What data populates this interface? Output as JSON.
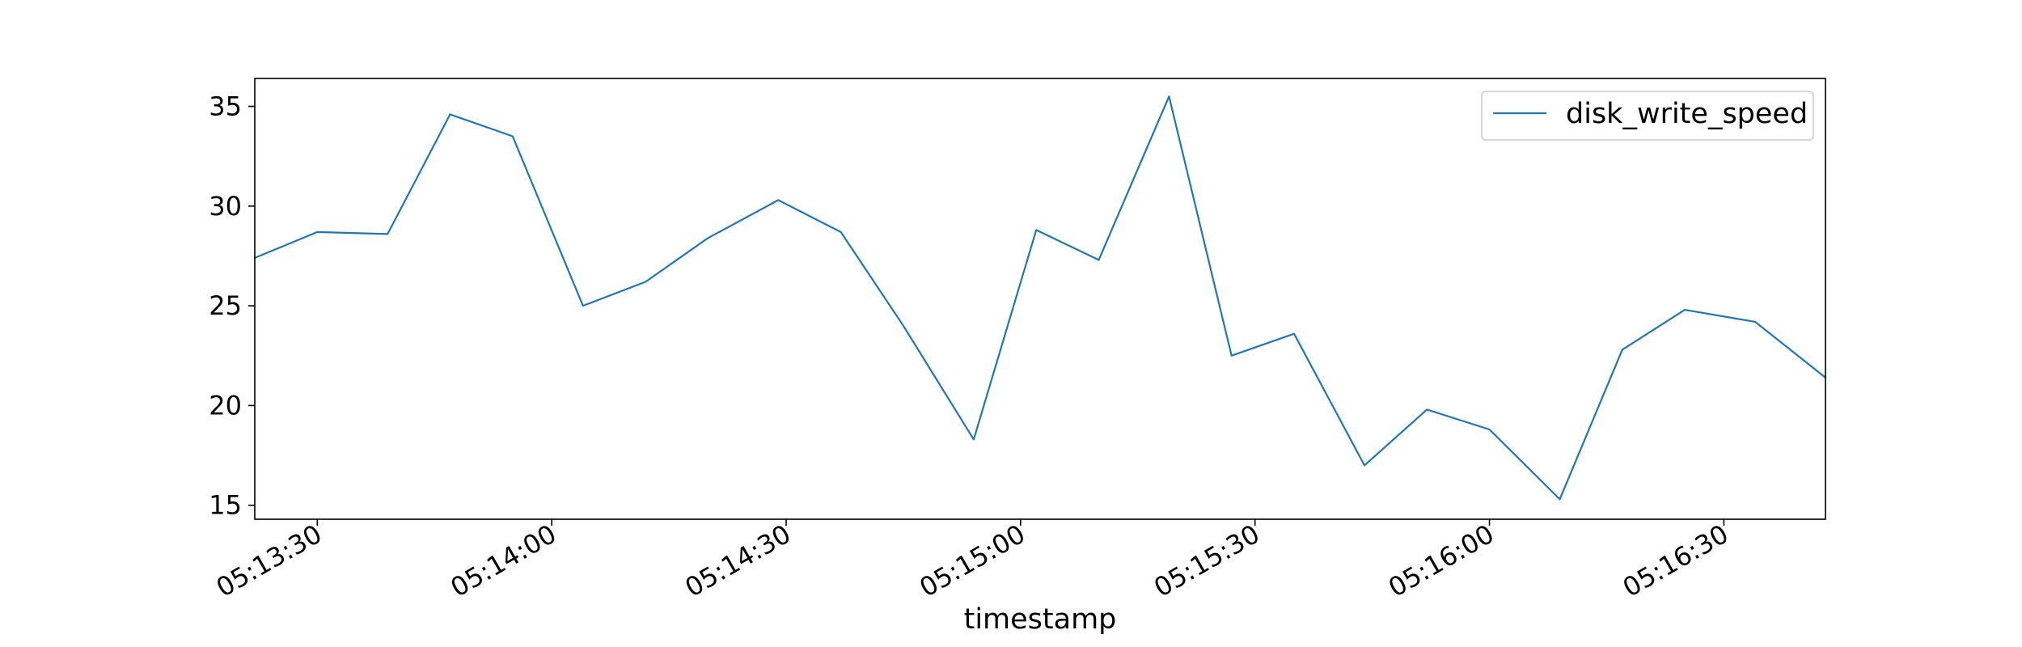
{
  "chart_data": {
    "type": "line",
    "title": "",
    "xlabel": "timestamp",
    "ylabel": "",
    "xlim": [
      "05:13:22",
      "05:16:43"
    ],
    "ylim": [
      14.3,
      36.4
    ],
    "x_ticks": [
      "05:13:30",
      "05:14:00",
      "05:14:30",
      "05:15:00",
      "05:15:30",
      "05:16:00",
      "05:16:30"
    ],
    "y_ticks": [
      15,
      20,
      25,
      30,
      35
    ],
    "x": [
      "05:13:22",
      "05:13:30",
      "05:13:39",
      "05:13:47",
      "05:13:55",
      "05:14:04",
      "05:14:12",
      "05:14:20",
      "05:14:29",
      "05:14:37",
      "05:14:45",
      "05:14:54",
      "05:15:02",
      "05:15:10",
      "05:15:19",
      "05:15:27",
      "05:15:35",
      "05:15:44",
      "05:15:52",
      "05:16:00",
      "05:16:09",
      "05:16:17",
      "05:16:25",
      "05:16:34",
      "05:16:43"
    ],
    "series": [
      {
        "name": "disk_write_speed",
        "color": "#1f77b4",
        "values": [
          27.4,
          28.7,
          28.6,
          34.6,
          33.5,
          25.0,
          26.2,
          28.4,
          30.3,
          28.7,
          24.0,
          18.3,
          28.8,
          27.3,
          35.5,
          22.5,
          23.6,
          17.0,
          19.8,
          18.8,
          15.3,
          22.8,
          24.8,
          24.2,
          21.4
        ]
      }
    ],
    "grid": false,
    "legend_position": "top-right"
  }
}
